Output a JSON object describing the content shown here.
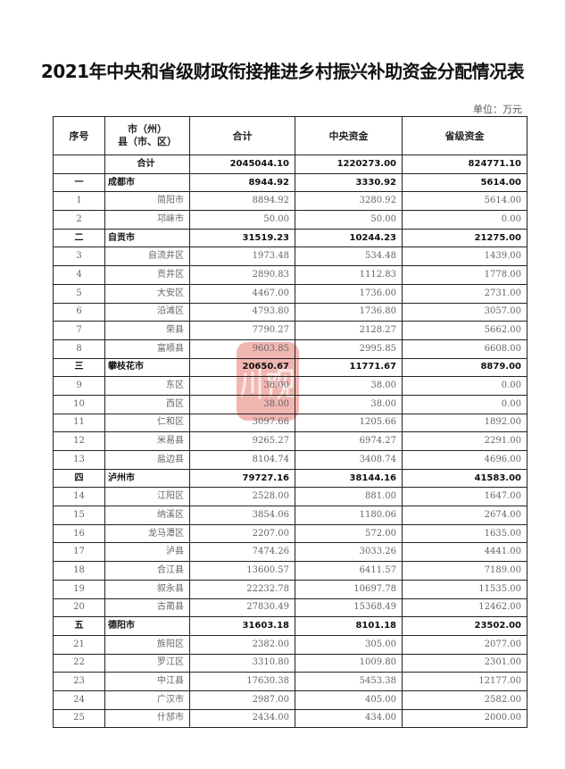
{
  "title": "2021年中央和省级财政衔接推进乡村振兴补助资金分配情况表",
  "unit": "单位：万元",
  "watermark": {
    "text": "川观",
    "color": "#e66e64"
  },
  "headers": [
    "序号",
    "市（州）\n县（市、区）",
    "合计",
    "中央资金",
    "省级资金"
  ],
  "rows": [
    {
      "type": "total",
      "seq": "",
      "name": "合计",
      "total": "2045044.10",
      "central": "1220273.00",
      "provincial": "824771.10"
    },
    {
      "type": "city",
      "seq": "一",
      "name": "成都市",
      "total": "8944.92",
      "central": "3330.92",
      "provincial": "5614.00"
    },
    {
      "type": "county",
      "seq": "1",
      "name": "简阳市",
      "total": "8894.92",
      "central": "3280.92",
      "provincial": "5614.00"
    },
    {
      "type": "county",
      "seq": "2",
      "name": "邛崃市",
      "total": "50.00",
      "central": "50.00",
      "provincial": "0.00"
    },
    {
      "type": "city",
      "seq": "二",
      "name": "自贡市",
      "total": "31519.23",
      "central": "10244.23",
      "provincial": "21275.00"
    },
    {
      "type": "county",
      "seq": "3",
      "name": "自流井区",
      "total": "1973.48",
      "central": "534.48",
      "provincial": "1439.00"
    },
    {
      "type": "county",
      "seq": "4",
      "name": "贡井区",
      "total": "2890.83",
      "central": "1112.83",
      "provincial": "1778.00"
    },
    {
      "type": "county",
      "seq": "5",
      "name": "大安区",
      "total": "4467.00",
      "central": "1736.00",
      "provincial": "2731.00"
    },
    {
      "type": "county",
      "seq": "6",
      "name": "沿滩区",
      "total": "4793.80",
      "central": "1736.80",
      "provincial": "3057.00"
    },
    {
      "type": "county",
      "seq": "7",
      "name": "荣县",
      "total": "7790.27",
      "central": "2128.27",
      "provincial": "5662.00"
    },
    {
      "type": "county",
      "seq": "8",
      "name": "富顺县",
      "total": "9603.85",
      "central": "2995.85",
      "provincial": "6608.00"
    },
    {
      "type": "city",
      "seq": "三",
      "name": "攀枝花市",
      "total": "20650.67",
      "central": "11771.67",
      "provincial": "8879.00"
    },
    {
      "type": "county",
      "seq": "9",
      "name": "东区",
      "total": "38.00",
      "central": "38.00",
      "provincial": "0.00"
    },
    {
      "type": "county",
      "seq": "10",
      "name": "西区",
      "total": "38.00",
      "central": "38.00",
      "provincial": "0.00"
    },
    {
      "type": "county",
      "seq": "11",
      "name": "仁和区",
      "total": "3097.66",
      "central": "1205.66",
      "provincial": "1892.00"
    },
    {
      "type": "county",
      "seq": "12",
      "name": "米易县",
      "total": "9265.27",
      "central": "6974.27",
      "provincial": "2291.00"
    },
    {
      "type": "county",
      "seq": "13",
      "name": "盐边县",
      "total": "8104.74",
      "central": "3408.74",
      "provincial": "4696.00"
    },
    {
      "type": "city",
      "seq": "四",
      "name": "泸州市",
      "total": "79727.16",
      "central": "38144.16",
      "provincial": "41583.00"
    },
    {
      "type": "county",
      "seq": "14",
      "name": "江阳区",
      "total": "2528.00",
      "central": "881.00",
      "provincial": "1647.00"
    },
    {
      "type": "county",
      "seq": "15",
      "name": "纳溪区",
      "total": "3854.06",
      "central": "1180.06",
      "provincial": "2674.00"
    },
    {
      "type": "county",
      "seq": "16",
      "name": "龙马潭区",
      "total": "2207.00",
      "central": "572.00",
      "provincial": "1635.00"
    },
    {
      "type": "county",
      "seq": "17",
      "name": "泸县",
      "total": "7474.26",
      "central": "3033.26",
      "provincial": "4441.00"
    },
    {
      "type": "county",
      "seq": "18",
      "name": "合江县",
      "total": "13600.57",
      "central": "6411.57",
      "provincial": "7189.00"
    },
    {
      "type": "county",
      "seq": "19",
      "name": "叙永县",
      "total": "22232.78",
      "central": "10697.78",
      "provincial": "11535.00"
    },
    {
      "type": "county",
      "seq": "20",
      "name": "古蔺县",
      "total": "27830.49",
      "central": "15368.49",
      "provincial": "12462.00"
    },
    {
      "type": "city",
      "seq": "五",
      "name": "德阳市",
      "total": "31603.18",
      "central": "8101.18",
      "provincial": "23502.00"
    },
    {
      "type": "county",
      "seq": "21",
      "name": "旌阳区",
      "total": "2382.00",
      "central": "305.00",
      "provincial": "2077.00"
    },
    {
      "type": "county",
      "seq": "22",
      "name": "罗江区",
      "total": "3310.80",
      "central": "1009.80",
      "provincial": "2301.00"
    },
    {
      "type": "county",
      "seq": "23",
      "name": "中江县",
      "total": "17630.38",
      "central": "5453.38",
      "provincial": "12177.00"
    },
    {
      "type": "county",
      "seq": "24",
      "name": "广汉市",
      "total": "2987.00",
      "central": "405.00",
      "provincial": "2582.00"
    },
    {
      "type": "county",
      "seq": "25",
      "name": "什邡市",
      "total": "2434.00",
      "central": "434.00",
      "provincial": "2000.00"
    }
  ]
}
